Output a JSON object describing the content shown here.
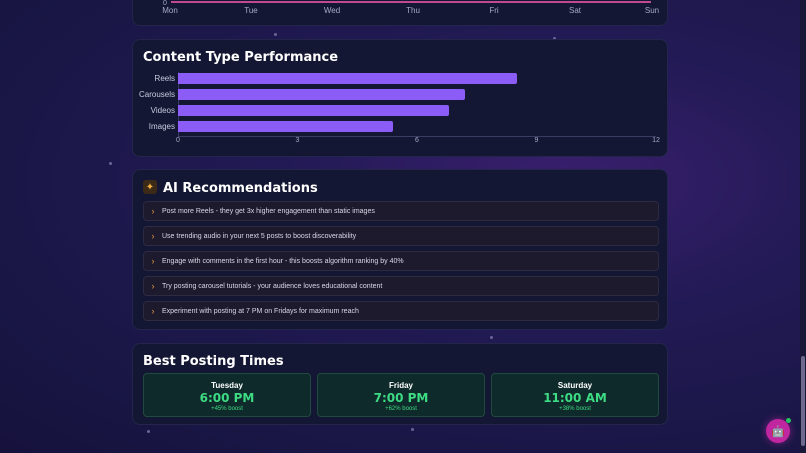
{
  "weekly": {
    "zero": "0",
    "days": [
      "Mon",
      "Tue",
      "Wed",
      "Thu",
      "Fri",
      "Sat",
      "Sun"
    ]
  },
  "performance": {
    "title": "Content Type Performance"
  },
  "chart_data": {
    "type": "bar",
    "orientation": "horizontal",
    "categories": [
      "Reels",
      "Carousels",
      "Videos",
      "Images"
    ],
    "values": [
      8.5,
      7.2,
      6.8,
      5.4
    ],
    "xticks": [
      "0",
      "3",
      "6",
      "9",
      "12"
    ],
    "xlim": [
      0,
      12
    ],
    "color": "#8b5cf6",
    "title": "Content Type Performance"
  },
  "ai": {
    "title": "AI Recommendations",
    "icon": "sparkle-icon",
    "items": [
      "Post more Reels - they get 3x higher engagement than static images",
      "Use trending audio in your next 5 posts to boost discoverability",
      "Engage with comments in the first hour - this boosts algorithm ranking by 40%",
      "Try posting carousel tutorials - your audience loves educational content",
      "Experiment with posting at 7 PM on Fridays for maximum reach"
    ]
  },
  "times": {
    "title": "Best Posting Times",
    "slots": [
      {
        "day": "Tuesday",
        "time": "6:00 PM",
        "boost": "+45% boost"
      },
      {
        "day": "Friday",
        "time": "7:00 PM",
        "boost": "+62% boost"
      },
      {
        "day": "Saturday",
        "time": "11:00 AM",
        "boost": "+38% boost"
      }
    ]
  },
  "colors": {
    "accent": "#8b5cf6",
    "success": "#3ddc84",
    "warning": "#e39a3e",
    "bot": "#c026a0"
  }
}
